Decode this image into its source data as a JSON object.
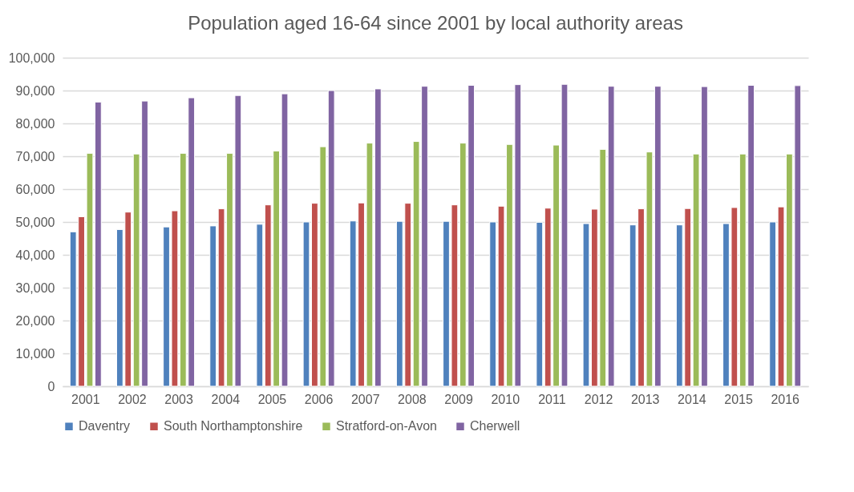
{
  "chart_data": {
    "type": "bar",
    "title": "Population aged 16-64 since 2001 by local authority areas",
    "categories": [
      "2001",
      "2002",
      "2003",
      "2004",
      "2005",
      "2006",
      "2007",
      "2008",
      "2009",
      "2010",
      "2011",
      "2012",
      "2013",
      "2014",
      "2015",
      "2016"
    ],
    "series": [
      {
        "name": "Daventry",
        "color": "#4f81bd",
        "values": [
          47000,
          47700,
          48500,
          48800,
          49300,
          50000,
          50300,
          50200,
          50200,
          50000,
          49900,
          49500,
          49100,
          49100,
          49500,
          50000
        ]
      },
      {
        "name": "South Northamptonshire",
        "color": "#c0504d",
        "values": [
          51600,
          53000,
          53400,
          54000,
          55200,
          55700,
          55800,
          55700,
          55200,
          54800,
          54200,
          53900,
          54000,
          54100,
          54400,
          54600
        ]
      },
      {
        "name": "Stratford-on-Avon",
        "color": "#9bbb59",
        "values": [
          70900,
          70700,
          70900,
          70900,
          71600,
          72900,
          74000,
          74500,
          74000,
          73600,
          73400,
          72100,
          71300,
          70700,
          70700,
          70700
        ]
      },
      {
        "name": "Cherwell",
        "color": "#8064a2",
        "values": [
          86500,
          86800,
          87800,
          88500,
          89000,
          90000,
          90500,
          91300,
          91600,
          91800,
          91900,
          91300,
          91300,
          91200,
          91600,
          91500
        ]
      }
    ],
    "ylim": [
      0,
      100000
    ],
    "yticks": [
      0,
      {
        "value": 10000,
        "label": "10,000"
      },
      {
        "value": 20000,
        "label": "20,000"
      },
      {
        "value": 30000,
        "label": "30,000"
      },
      {
        "value": 40000,
        "label": "40,000"
      },
      {
        "value": 50000,
        "label": "50,000"
      },
      {
        "value": 60000,
        "label": "60,000"
      },
      {
        "value": 70000,
        "label": "70,000"
      },
      {
        "value": 80000,
        "label": "80,000"
      },
      {
        "value": 90000,
        "label": "90,000"
      },
      {
        "value": 100000,
        "label": "100,000"
      }
    ],
    "grid": "y",
    "legend": "bottom"
  }
}
